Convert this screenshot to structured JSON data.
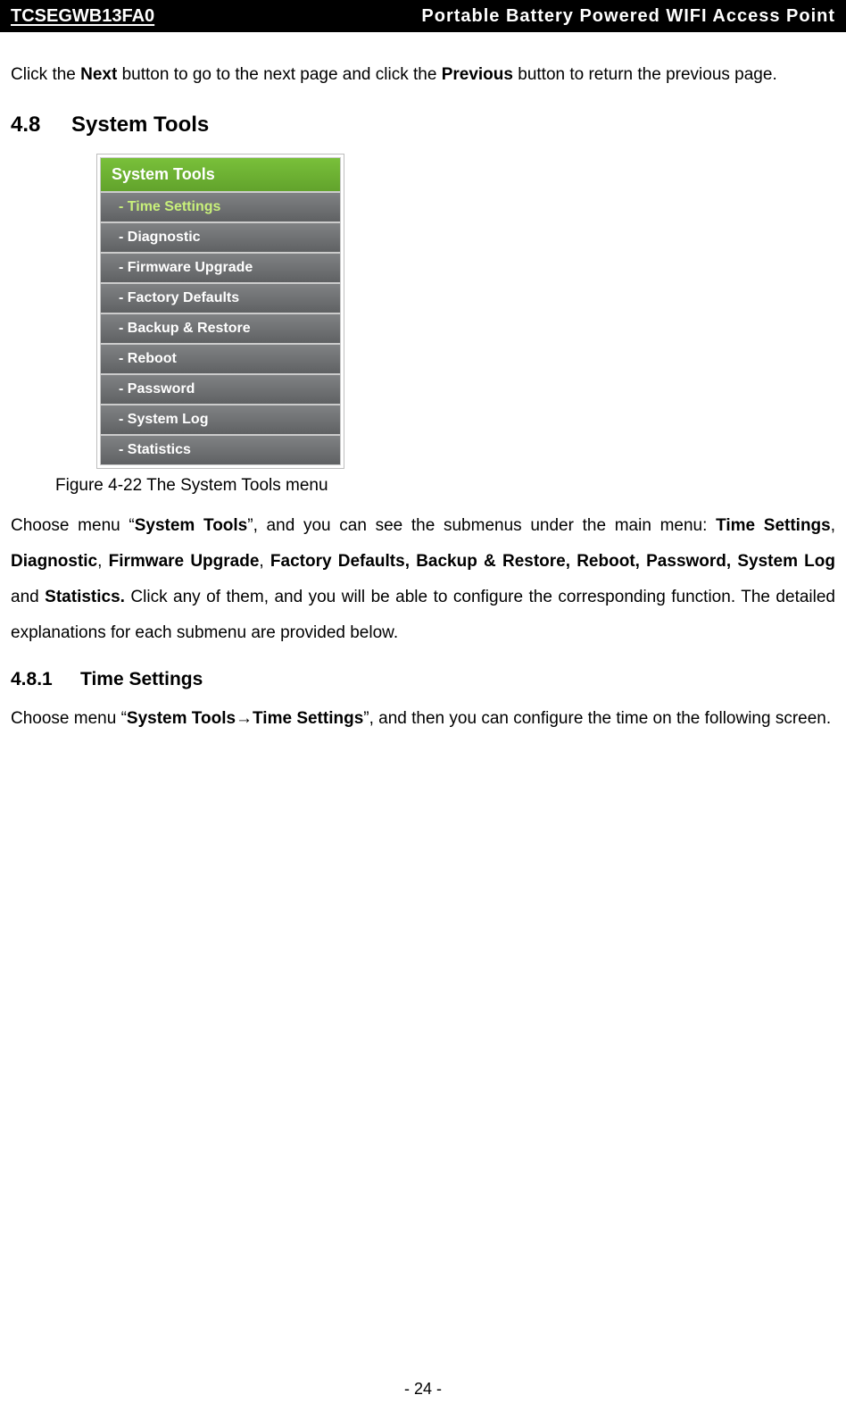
{
  "header": {
    "model": "TCSEGWB13FA0",
    "title": "Portable  Battery  Powered  WIFI  Access  Point"
  },
  "intro": {
    "pre": "Click the ",
    "b1": "Next",
    "mid": " button to go to the next page and click the ",
    "b2": "Previous",
    "post": " button to return the previous page."
  },
  "section": {
    "num": "4.8",
    "title": "System Tools"
  },
  "menu": {
    "header": "System Tools",
    "items": [
      "- Time Settings",
      "- Diagnostic",
      "- Firmware Upgrade",
      "- Factory Defaults",
      "- Backup & Restore",
      "- Reboot",
      "- Password",
      "- System Log",
      "- Statistics"
    ]
  },
  "figcaption": "Figure 4-22 The System Tools menu",
  "desc": {
    "p1a": "Choose  menu  “",
    "p1b": "System  Tools",
    "p1c": "”,  and  you  can  see  the  submenus  under  the  main  menu:  ",
    "p1d": "Time Settings",
    "p1e": ",  ",
    "p1f": "Diagnostic",
    "p1g": ",  ",
    "p1h": "Firmware  Upgrade",
    "p1i": ",  ",
    "p1j": "Factory  Defaults,  Backup  &  Restore,  Reboot, Password, System Log ",
    "p1k": "and ",
    "p1l": "Statistics.",
    "p1m": " Click any of them, and you will be able to configure the corresponding function. The detailed explanations for each submenu are provided below."
  },
  "subsection": {
    "num": "4.8.1",
    "title": "Time Settings"
  },
  "sub_desc": {
    "a": "Choose  menu  “",
    "b": "System  Tools→Time  Settings",
    "c": "”,  and  then  you  can  configure  the  time  on  the following screen."
  },
  "page_number": "- 24 -"
}
